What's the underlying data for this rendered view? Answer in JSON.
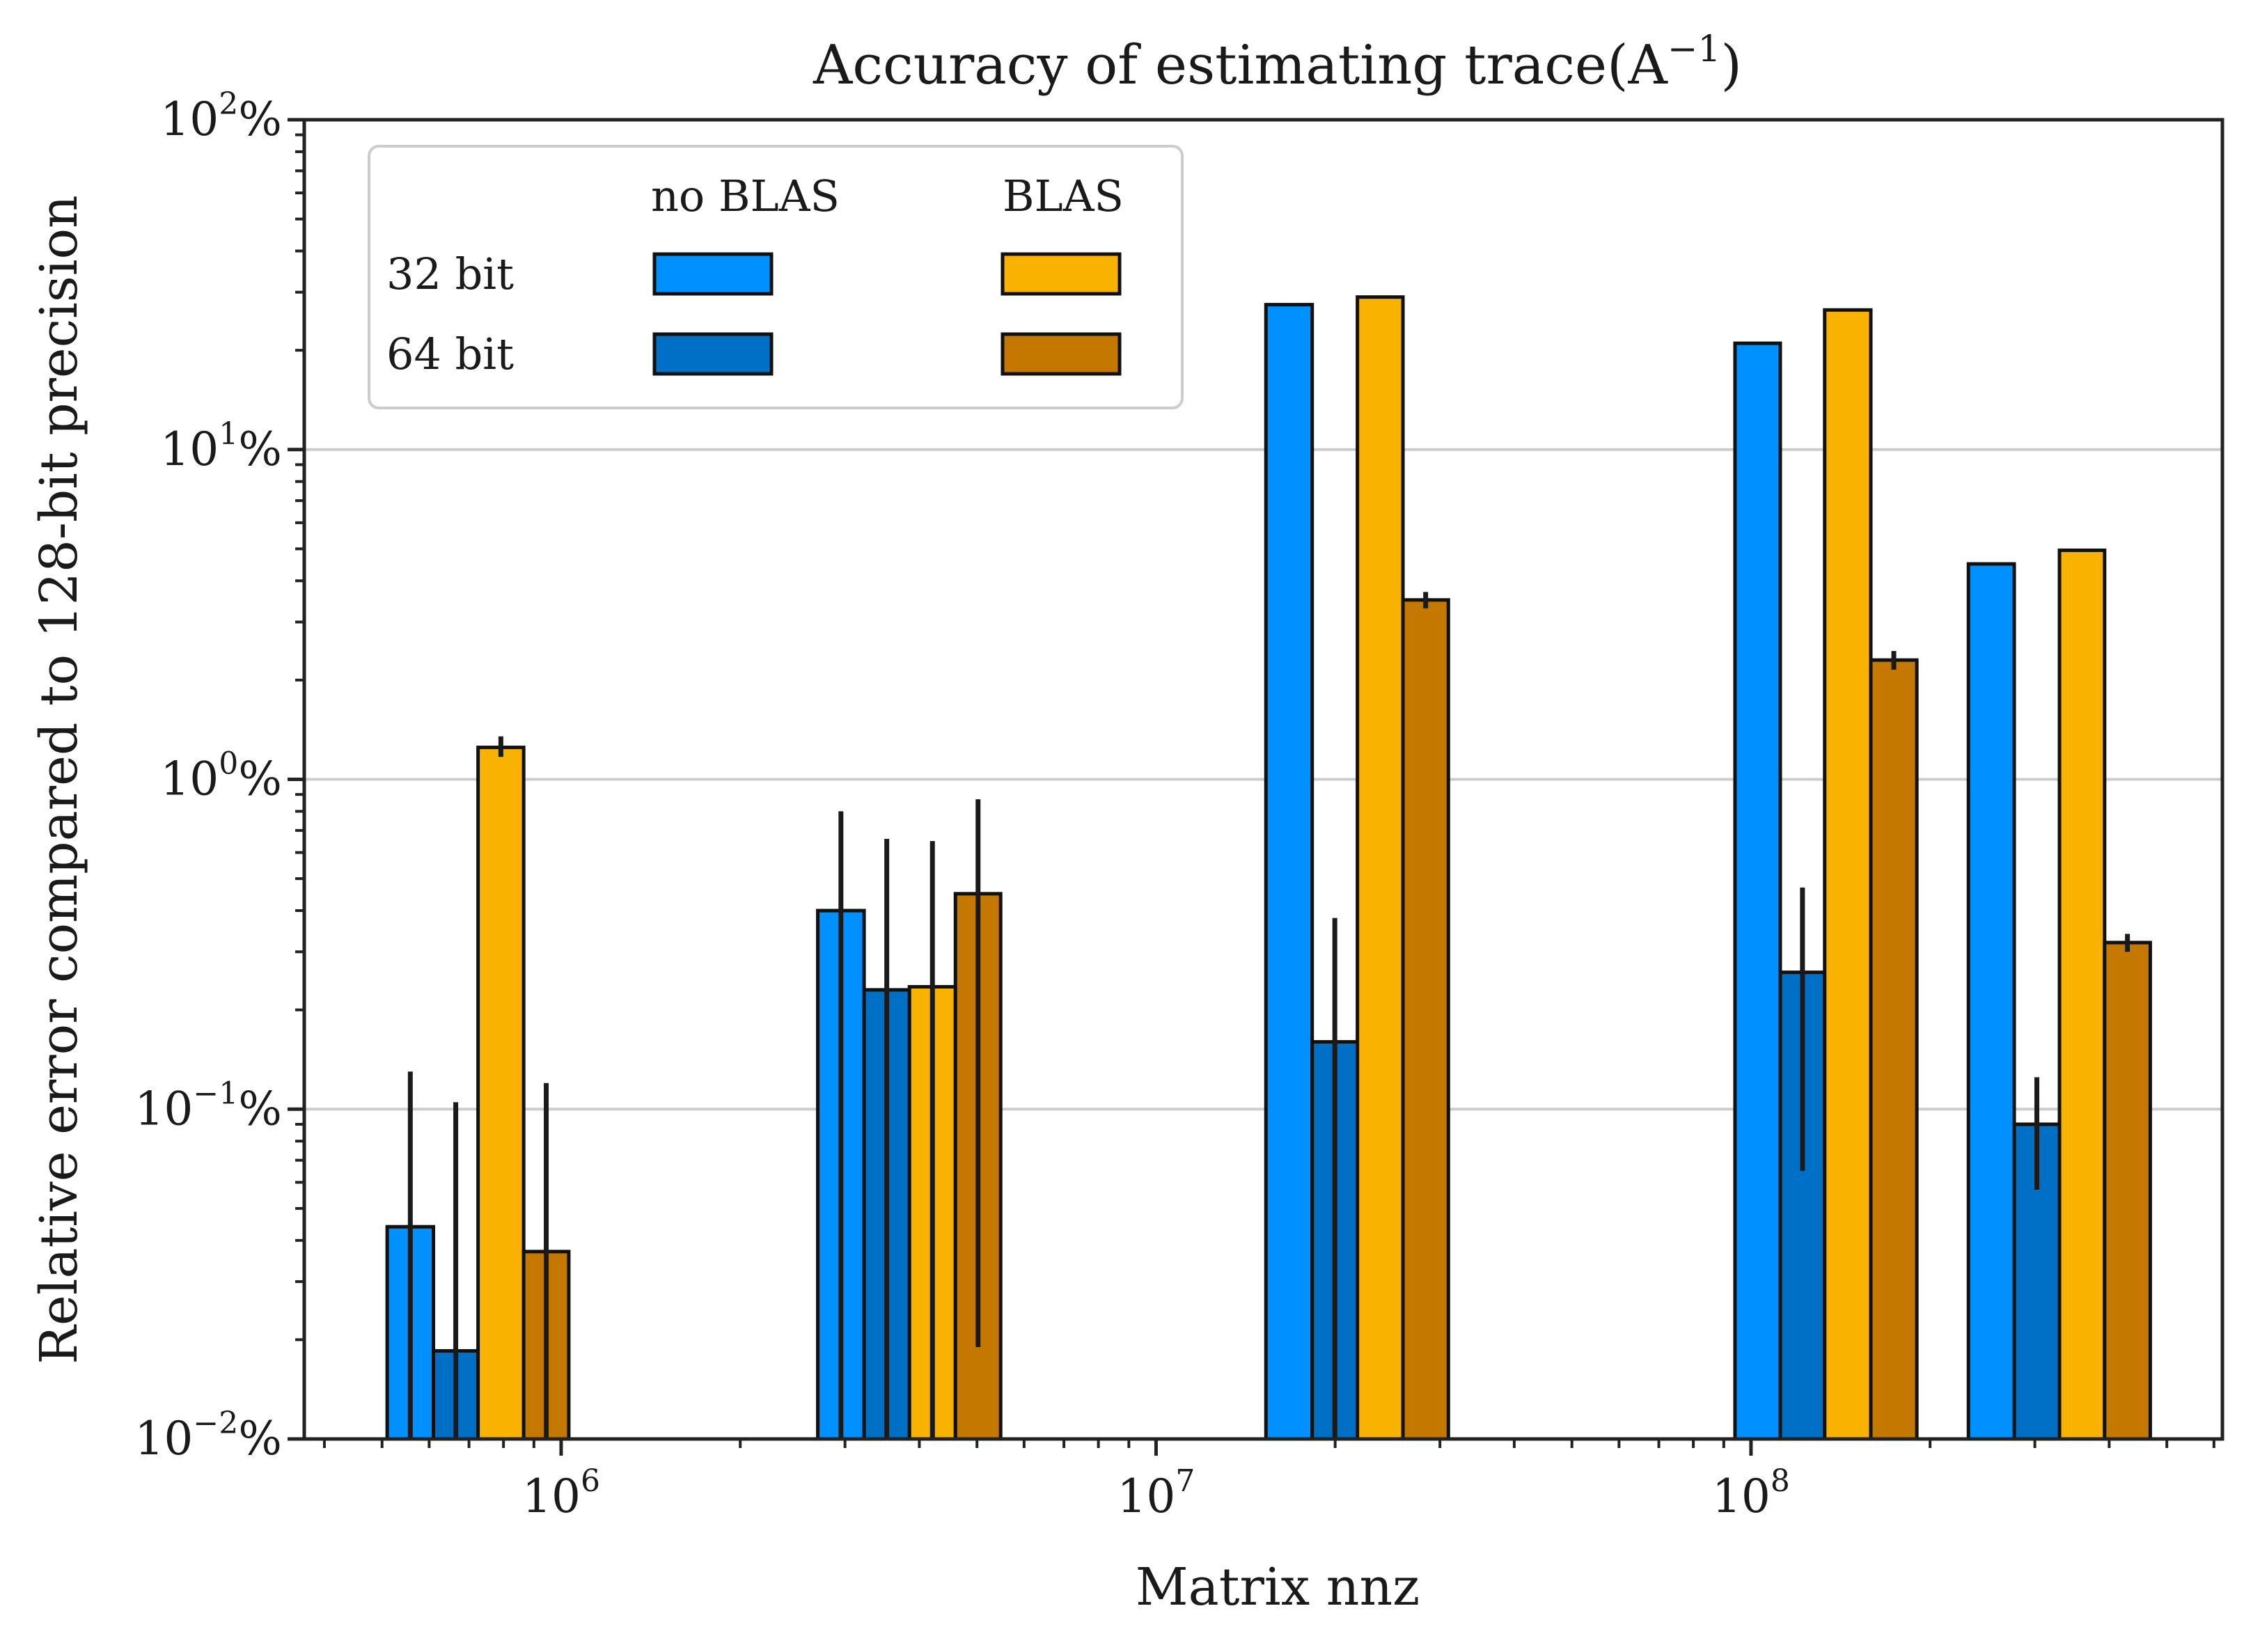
{
  "chart_data": {
    "type": "bar",
    "title": "Accuracy of estimating trace(A",
    "title_superscript": "−1",
    "title_close": ")",
    "xlabel": "Matrix nnz",
    "ylabel": "Relative error compared to 128-bit precision",
    "x_scale": "log",
    "y_scale": "log",
    "xlim": [
      370000,
      620000000
    ],
    "ylim": [
      0.01,
      100
    ],
    "grid": "y-major",
    "legend_position": "top-left",
    "x_ticks": [
      {
        "value": 1000000,
        "base": "10",
        "exp": "6"
      },
      {
        "value": 10000000,
        "base": "10",
        "exp": "7"
      },
      {
        "value": 100000000,
        "base": "10",
        "exp": "8"
      }
    ],
    "y_ticks": [
      {
        "value": 0.01,
        "base": "10",
        "exp": "−2",
        "suffix": "%"
      },
      {
        "value": 0.1,
        "base": "10",
        "exp": "−1",
        "suffix": "%"
      },
      {
        "value": 1,
        "base": "10",
        "exp": "0",
        "suffix": "%"
      },
      {
        "value": 10,
        "base": "10",
        "exp": "1",
        "suffix": "%"
      },
      {
        "value": 100,
        "base": "10",
        "exp": "2",
        "suffix": "%"
      }
    ],
    "legend": {
      "col_headers": [
        "no BLAS",
        "BLAS"
      ],
      "row_headers": [
        "32 bit",
        "64 bit"
      ]
    },
    "colors": {
      "no BLAS 32 bit": "#0090ff",
      "no BLAS 64 bit": "#0070c6",
      "BLAS 32 bit": "#f9b200",
      "BLAS 64 bit": "#c57800",
      "edge": "#111111",
      "errorbar": "#1a1a1a",
      "grid": "#cccccc"
    },
    "series": [
      {
        "key": "no BLAS 32 bit",
        "bars": [
          {
            "x_left": 510000,
            "x_right": 610000,
            "value": 0.044,
            "err_low": 0.0,
            "err_high": 0.13
          },
          {
            "x_left": 2700000,
            "x_right": 3230000,
            "value": 0.4,
            "err_low": 0.0,
            "err_high": 0.8
          },
          {
            "x_left": 15300000,
            "x_right": 18300000,
            "value": 27.5,
            "err_low": 27.5,
            "err_high": 27.5
          },
          {
            "x_left": 94000000,
            "x_right": 112000000,
            "value": 21.0,
            "err_low": 21.0,
            "err_high": 21.0
          },
          {
            "x_left": 232000000,
            "x_right": 277000000,
            "value": 4.5,
            "err_low": 4.5,
            "err_high": 4.5
          }
        ]
      },
      {
        "key": "no BLAS 64 bit",
        "bars": [
          {
            "x_left": 610000,
            "x_right": 725000,
            "value": 0.0185,
            "err_low": 0.0,
            "err_high": 0.105
          },
          {
            "x_left": 3230000,
            "x_right": 3850000,
            "value": 0.23,
            "err_low": 0.0,
            "err_high": 0.66
          },
          {
            "x_left": 18300000,
            "x_right": 21800000,
            "value": 0.16,
            "err_low": 0.0,
            "err_high": 0.38
          },
          {
            "x_left": 112000000,
            "x_right": 133000000,
            "value": 0.26,
            "err_low": 0.065,
            "err_high": 0.47
          },
          {
            "x_left": 277000000,
            "x_right": 330000000,
            "value": 0.09,
            "err_low": 0.057,
            "err_high": 0.125
          }
        ]
      },
      {
        "key": "BLAS 32 bit",
        "bars": [
          {
            "x_left": 725000,
            "x_right": 865000,
            "value": 1.25,
            "err_low": 1.17,
            "err_high": 1.35
          },
          {
            "x_left": 3850000,
            "x_right": 4600000,
            "value": 0.235,
            "err_low": 0.0,
            "err_high": 0.65
          },
          {
            "x_left": 21800000,
            "x_right": 26000000,
            "value": 29.0,
            "err_low": 29.0,
            "err_high": 29.0
          },
          {
            "x_left": 133000000,
            "x_right": 159000000,
            "value": 26.5,
            "err_low": 26.5,
            "err_high": 26.5
          },
          {
            "x_left": 330000000,
            "x_right": 393000000,
            "value": 4.95,
            "err_low": 4.95,
            "err_high": 4.95
          }
        ]
      },
      {
        "key": "BLAS 64 bit",
        "bars": [
          {
            "x_left": 865000,
            "x_right": 1030000,
            "value": 0.037,
            "err_low": 0.0,
            "err_high": 0.12
          },
          {
            "x_left": 4600000,
            "x_right": 5480000,
            "value": 0.45,
            "err_low": 0.019,
            "err_high": 0.87
          },
          {
            "x_left": 26000000,
            "x_right": 31000000,
            "value": 3.5,
            "err_low": 3.3,
            "err_high": 3.7
          },
          {
            "x_left": 159000000,
            "x_right": 190000000,
            "value": 2.3,
            "err_low": 2.15,
            "err_high": 2.45
          },
          {
            "x_left": 393000000,
            "x_right": 469000000,
            "value": 0.32,
            "err_low": 0.3,
            "err_high": 0.34
          }
        ]
      }
    ]
  }
}
